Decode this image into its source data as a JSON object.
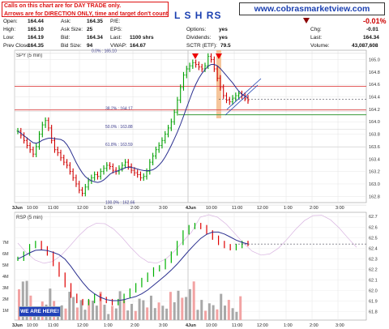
{
  "header": {
    "disclaimer_line1": "Calls on this chart are for DAY TRADE only.",
    "disclaimer_line2": "Arrows are for DIRECTION ONLY, time and target don't count.",
    "symbol": "L S H  RS",
    "website": "www.cobrasmarketview.com",
    "change_pct": "-0.01%",
    "quote_left": [
      {
        "label": "High:",
        "value": "165.10"
      },
      {
        "label": "Low:",
        "value": "164.19"
      },
      {
        "label": "Prev Close:",
        "value": "164.35"
      }
    ],
    "quote_open_label": "Open:",
    "quote_open_value": "164.44",
    "quote_mid": [
      {
        "label": "Ask:",
        "value": "164.35"
      },
      {
        "label": "Ask Size:",
        "value": "25"
      },
      {
        "label": "Bid:",
        "value": "164.34"
      },
      {
        "label": "Bid Size:",
        "value": "94"
      }
    ],
    "quote_right": [
      {
        "label": "P/E:",
        "value": ""
      },
      {
        "label": "EPS:",
        "value": ""
      },
      {
        "label": "Last:",
        "value": "1100 shrs"
      },
      {
        "label": "VWAP:",
        "value": "164.67"
      }
    ],
    "quote_far": [
      {
        "label": "Options:",
        "value": "yes"
      },
      {
        "label": "Dividends:",
        "value": "yes"
      },
      {
        "label": "SCTR (ETF):",
        "value": "79.5"
      }
    ],
    "quote_last": [
      {
        "label": "Chg:",
        "value": "-0.01"
      },
      {
        "label": "Last:",
        "value": "164.34"
      },
      {
        "label": "Volume:",
        "value": "43,087,608"
      }
    ]
  },
  "colors": {
    "price_line": "#2a2f8f",
    "up_bar": "#00a000",
    "down_bar": "#d00000",
    "fib_red": "#e35a5a",
    "fib_green": "#3a9a3a",
    "vwap_highlight": "#f3b37a",
    "rsp_up": "#00b000",
    "rsp_down": "#e00000"
  },
  "chart_data": [
    {
      "type": "line",
      "title": "SPY (5 min)",
      "x_ticks": [
        "3Jun",
        "10:00",
        "11:00",
        "12:00",
        "1:00",
        "2:00",
        "3:00",
        "4Jun",
        "10:00",
        "11:00",
        "12:00",
        "1:00",
        "2:00",
        "3:00"
      ],
      "y_ticks": [
        162.8,
        163.0,
        163.2,
        163.4,
        163.6,
        163.8,
        164.0,
        164.2,
        164.4,
        164.6,
        164.8,
        165.0
      ],
      "ylim": [
        162.7,
        165.15
      ],
      "fib_levels": [
        {
          "label": "0.0% : 165.10",
          "value": 165.1
        },
        {
          "label": "38.2% : 164.17",
          "value": 164.17
        },
        {
          "label": "50.0% : 163.88",
          "value": 163.88
        },
        {
          "label": "61.8% : 163.59",
          "value": 163.59
        },
        {
          "label": "100.0% : 162.66",
          "value": 162.66
        }
      ],
      "horizontal_lines": [
        164.57,
        164.19,
        164.36
      ],
      "series": [
        {
          "name": "price",
          "values": [
            163.85,
            163.78,
            163.7,
            163.62,
            163.55,
            163.48,
            163.6,
            163.8,
            163.95,
            164.02,
            163.9,
            163.7,
            163.55,
            163.5,
            163.42,
            163.35,
            163.3,
            163.2,
            163.1,
            163.0,
            162.9,
            162.85,
            162.95,
            163.05,
            163.1,
            163.15,
            163.12,
            163.2,
            163.25,
            163.3,
            163.28,
            163.22,
            163.2,
            163.25,
            163.3,
            163.35,
            163.28,
            163.22,
            163.18,
            163.15,
            163.1,
            163.12,
            163.2,
            163.35,
            163.45,
            163.55,
            163.62,
            163.7,
            163.8,
            163.9,
            164.0,
            164.15,
            164.35,
            164.55,
            164.75,
            164.85,
            164.9,
            164.95,
            164.92,
            164.88,
            164.85,
            164.9,
            165.05,
            165.0,
            164.85,
            164.7,
            164.55,
            164.42,
            164.35,
            164.32,
            164.38,
            164.42,
            164.45,
            164.42,
            164.38,
            164.34
          ]
        }
      ]
    },
    {
      "type": "line",
      "title": "RSP (5 min)",
      "y_ticks": [
        61.8,
        61.9,
        62.0,
        62.1,
        62.2,
        62.3,
        62.4,
        62.5,
        62.6,
        62.7
      ],
      "ylim": [
        61.72,
        62.74
      ],
      "vol_ticks": [
        "1M",
        "2M",
        "3M",
        "4M",
        "5M",
        "6M",
        "7M"
      ],
      "horizontal_lines": [
        62.44
      ],
      "badge": "WE ARE HERE!",
      "series": [
        {
          "name": "price",
          "values": [
            62.3,
            62.35,
            62.42,
            62.45,
            62.4,
            62.35,
            62.25,
            62.15,
            62.05,
            61.95,
            61.9,
            61.88,
            61.9,
            61.95,
            61.92,
            61.9,
            61.88,
            61.9,
            61.95,
            62.0,
            62.05,
            62.1,
            62.15,
            62.2,
            62.22,
            62.28,
            62.35,
            62.45,
            62.55,
            62.6,
            62.62,
            62.6,
            62.55,
            62.5,
            62.45,
            62.42,
            62.4,
            62.42,
            62.45,
            62.44
          ]
        }
      ]
    }
  ]
}
